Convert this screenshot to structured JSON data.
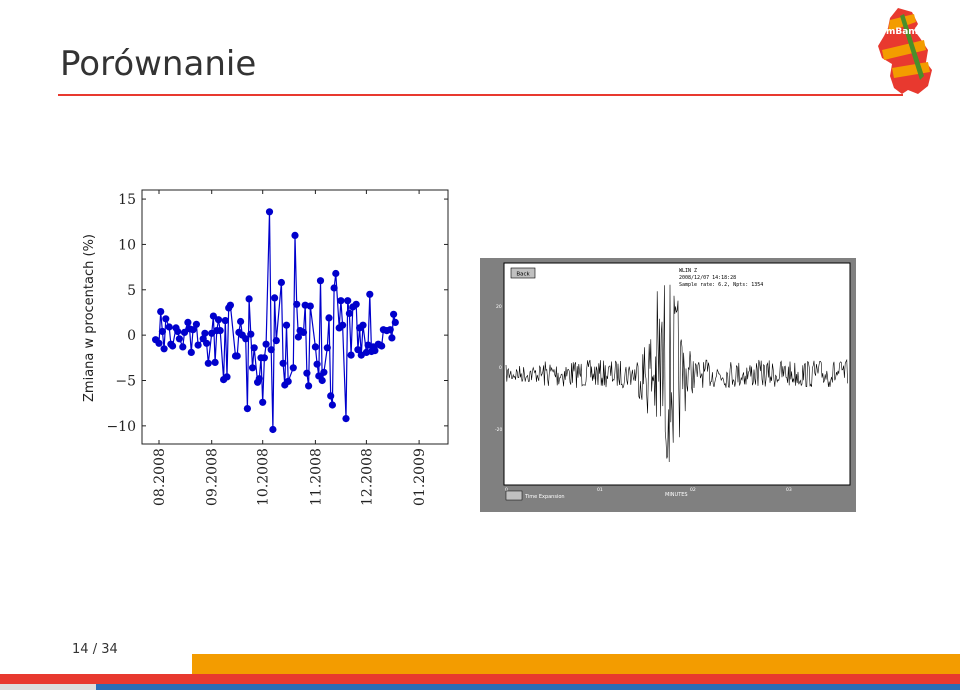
{
  "slide": {
    "title": "Porównanie",
    "page_current": "14",
    "page_sep": "/",
    "page_total": "34",
    "accent_red": "#e8392f",
    "accent_orange": "#f39c00",
    "accent_blue": "#2a6db5"
  },
  "logo": {
    "text": "mBank"
  },
  "chart_data": {
    "type": "scatter",
    "title": "",
    "xlabel": "",
    "ylabel": "Zmiana w procentach (%)",
    "ylim": [
      -12,
      16
    ],
    "yticks": [
      "15",
      "10",
      "5",
      "0",
      "−5",
      "−10"
    ],
    "x_range": [
      "2008-07-22",
      "2009-01-18"
    ],
    "xticks": [
      "08.2008",
      "09.2008",
      "10.2008",
      "11.2008",
      "12.2008",
      "01.2009"
    ],
    "grid": false,
    "line": true,
    "color": "#0000cc",
    "points": [
      [
        "2008-07-30",
        -0.5
      ],
      [
        "2008-08-01",
        -0.9
      ],
      [
        "2008-08-02",
        2.6
      ],
      [
        "2008-08-03",
        0.4
      ],
      [
        "2008-08-04",
        -1.5
      ],
      [
        "2008-08-05",
        1.8
      ],
      [
        "2008-08-07",
        0.9
      ],
      [
        "2008-08-08",
        -1.0
      ],
      [
        "2008-08-09",
        -1.2
      ],
      [
        "2008-08-11",
        0.8
      ],
      [
        "2008-08-12",
        0.4
      ],
      [
        "2008-08-13",
        -0.4
      ],
      [
        "2008-08-15",
        -1.3
      ],
      [
        "2008-08-16",
        0.3
      ],
      [
        "2008-08-18",
        1.4
      ],
      [
        "2008-08-19",
        0.7
      ],
      [
        "2008-08-20",
        -1.9
      ],
      [
        "2008-08-21",
        0.6
      ],
      [
        "2008-08-23",
        1.2
      ],
      [
        "2008-08-24",
        -1.1
      ],
      [
        "2008-08-27",
        -0.4
      ],
      [
        "2008-08-28",
        0.2
      ],
      [
        "2008-08-29",
        -0.9
      ],
      [
        "2008-08-30",
        -3.1
      ],
      [
        "2008-09-01",
        0.2
      ],
      [
        "2008-09-02",
        2.1
      ],
      [
        "2008-09-03",
        -3.0
      ],
      [
        "2008-09-04",
        0.5
      ],
      [
        "2008-09-05",
        1.7
      ],
      [
        "2008-09-06",
        0.5
      ],
      [
        "2008-09-08",
        -4.9
      ],
      [
        "2008-09-09",
        1.6
      ],
      [
        "2008-09-10",
        -4.6
      ],
      [
        "2008-09-11",
        3.0
      ],
      [
        "2008-09-12",
        3.3
      ],
      [
        "2008-09-15",
        -2.3
      ],
      [
        "2008-09-16",
        -2.3
      ],
      [
        "2008-09-17",
        0.3
      ],
      [
        "2008-09-18",
        1.5
      ],
      [
        "2008-09-19",
        0.0
      ],
      [
        "2008-09-21",
        -0.4
      ],
      [
        "2008-09-22",
        -8.1
      ],
      [
        "2008-09-23",
        4.0
      ],
      [
        "2008-09-24",
        0.1
      ],
      [
        "2008-09-25",
        -3.6
      ],
      [
        "2008-09-26",
        -1.4
      ],
      [
        "2008-09-28",
        -5.2
      ],
      [
        "2008-09-29",
        -4.8
      ],
      [
        "2008-09-30",
        -2.5
      ],
      [
        "2008-10-01",
        -7.4
      ],
      [
        "2008-10-02",
        -2.5
      ],
      [
        "2008-10-03",
        -1.0
      ],
      [
        "2008-10-05",
        13.6
      ],
      [
        "2008-10-06",
        -1.6
      ],
      [
        "2008-10-07",
        -10.4
      ],
      [
        "2008-10-08",
        4.1
      ],
      [
        "2008-10-09",
        -0.6
      ],
      [
        "2008-10-12",
        5.8
      ],
      [
        "2008-10-13",
        -3.1
      ],
      [
        "2008-10-14",
        -5.5
      ],
      [
        "2008-10-15",
        1.1
      ],
      [
        "2008-10-16",
        -5.1
      ],
      [
        "2008-10-19",
        -3.6
      ],
      [
        "2008-10-20",
        11.0
      ],
      [
        "2008-10-21",
        3.4
      ],
      [
        "2008-10-22",
        -0.2
      ],
      [
        "2008-10-23",
        0.5
      ],
      [
        "2008-10-25",
        0.3
      ],
      [
        "2008-10-26",
        3.3
      ],
      [
        "2008-10-27",
        -4.2
      ],
      [
        "2008-10-28",
        -5.6
      ],
      [
        "2008-10-29",
        3.2
      ],
      [
        "2008-11-01",
        -1.3
      ],
      [
        "2008-11-02",
        -3.2
      ],
      [
        "2008-11-03",
        -4.5
      ],
      [
        "2008-11-04",
        6.0
      ],
      [
        "2008-11-05",
        -5.0
      ],
      [
        "2008-11-06",
        -4.1
      ],
      [
        "2008-11-08",
        -1.4
      ],
      [
        "2008-11-09",
        1.9
      ],
      [
        "2008-11-10",
        -6.7
      ],
      [
        "2008-11-11",
        -7.7
      ],
      [
        "2008-11-12",
        5.2
      ],
      [
        "2008-11-13",
        6.8
      ],
      [
        "2008-11-15",
        0.8
      ],
      [
        "2008-11-16",
        3.8
      ],
      [
        "2008-11-17",
        1.1
      ],
      [
        "2008-11-19",
        -9.2
      ],
      [
        "2008-11-20",
        3.8
      ],
      [
        "2008-11-21",
        2.4
      ],
      [
        "2008-11-22",
        -2.2
      ],
      [
        "2008-11-23",
        3.1
      ],
      [
        "2008-11-25",
        3.4
      ],
      [
        "2008-11-26",
        -1.6
      ],
      [
        "2008-11-27",
        0.8
      ],
      [
        "2008-11-28",
        -2.2
      ],
      [
        "2008-11-29",
        1.1
      ],
      [
        "2008-12-01",
        -1.9
      ],
      [
        "2008-12-02",
        -1.1
      ],
      [
        "2008-12-03",
        4.5
      ],
      [
        "2008-12-04",
        -1.8
      ],
      [
        "2008-12-05",
        -1.3
      ],
      [
        "2008-12-06",
        -1.7
      ],
      [
        "2008-12-08",
        -1.0
      ],
      [
        "2008-12-09",
        -1.1
      ],
      [
        "2008-12-10",
        -1.2
      ],
      [
        "2008-12-11",
        0.6
      ],
      [
        "2008-12-13",
        0.5
      ],
      [
        "2008-12-15",
        0.6
      ],
      [
        "2008-12-16",
        -0.3
      ],
      [
        "2008-12-17",
        2.3
      ],
      [
        "2008-12-18",
        1.4
      ]
    ]
  },
  "seismogram": {
    "button_label": "Back",
    "station": "WLIN Z",
    "timestamp": "2008/12/07 14:18:28",
    "sample_info": "Sample rate: 6.2, Npts: 1354",
    "y_labels": [
      "20",
      "0",
      "-20"
    ],
    "x_labels": [
      "0",
      "01",
      "02",
      "03"
    ],
    "x_title": "MINUTES",
    "toggle_label": "Time Expansion",
    "background": "#808080"
  }
}
